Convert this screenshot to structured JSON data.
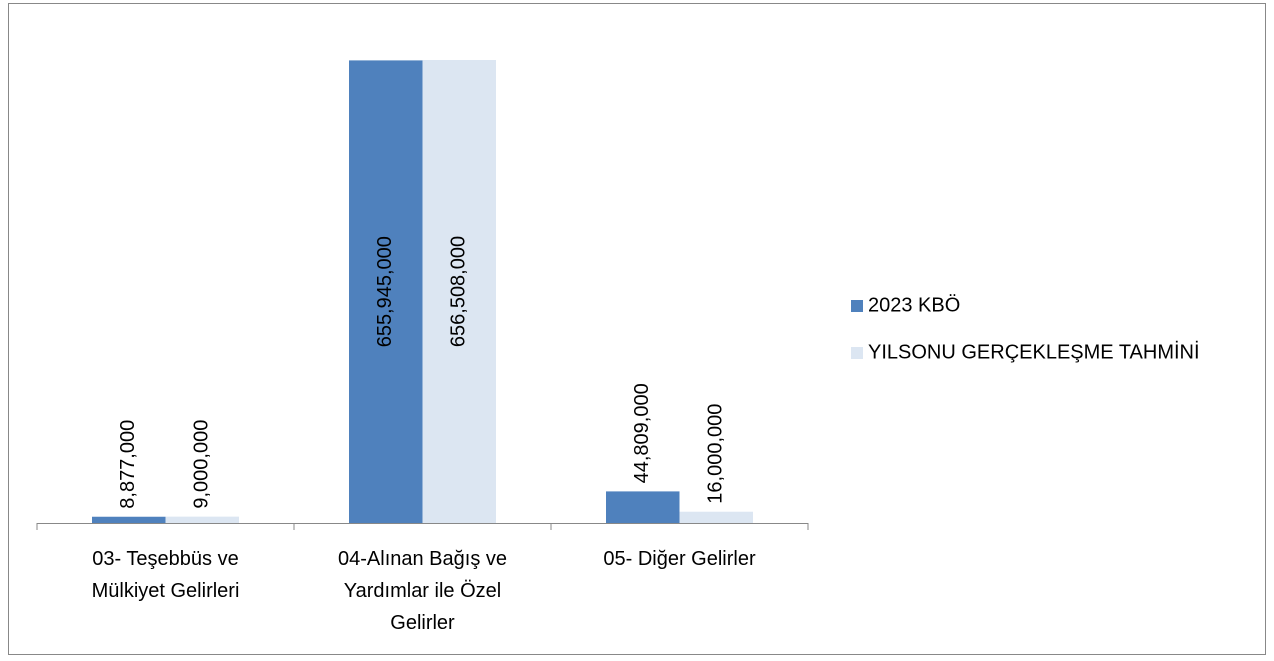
{
  "chart_data": {
    "type": "bar",
    "categories": [
      "03- Teşebbüs ve Mülkiyet Gelirleri",
      "04-Alınan Bağış ve Yardımlar ile Özel Gelirler",
      "05- Diğer Gelirler"
    ],
    "series": [
      {
        "name": "2023 KBÖ",
        "color": "#4f81bd",
        "values": [
          8877000,
          655945000,
          44809000
        ],
        "value_labels": [
          "8,877,000",
          "655,945,000",
          "44,809,000"
        ]
      },
      {
        "name": "YILSONU GERÇEKLEŞME TAHMİNİ",
        "color": "#dce6f2",
        "values": [
          9000000,
          656508000,
          16000000
        ],
        "value_labels": [
          "9,000,000",
          "656,508,000",
          "16,000,000"
        ]
      }
    ],
    "legend": "right"
  }
}
